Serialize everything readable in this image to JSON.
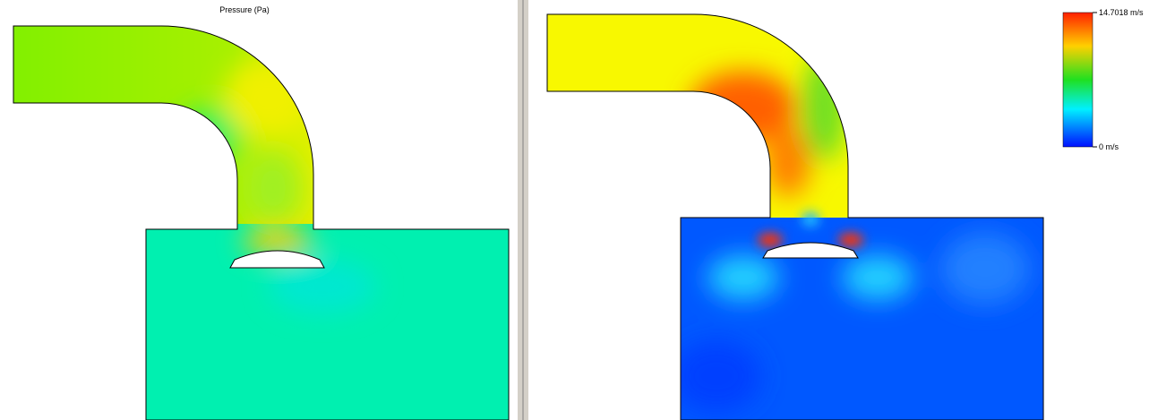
{
  "left": {
    "title": "Pressure (Pa)"
  },
  "right": {
    "legend": {
      "max_label": "14.7018 m/s",
      "min_label": "0 m/s"
    }
  }
}
